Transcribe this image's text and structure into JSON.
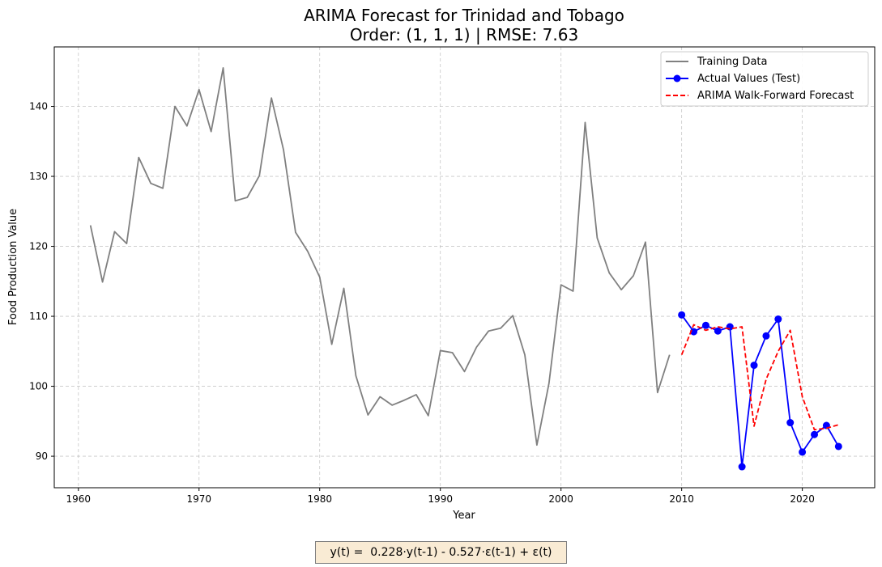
{
  "chart_data": {
    "type": "line",
    "title": "ARIMA Forecast for Trinidad and Tobago",
    "subtitle": "Order: (1, 1, 1) | RMSE: 7.63",
    "xlabel": "Year",
    "ylabel": "Food Production Value",
    "xlim": [
      1958,
      2026
    ],
    "ylim": [
      85.5,
      148.5
    ],
    "xticks": [
      1960,
      1970,
      1980,
      1990,
      2000,
      2010,
      2020
    ],
    "yticks": [
      90,
      100,
      110,
      120,
      130,
      140
    ],
    "grid": true,
    "legend_position": "top-right",
    "series": [
      {
        "name": "Training Data",
        "color": "#808080",
        "style": "solid",
        "marker": "none",
        "x": [
          1961,
          1962,
          1963,
          1964,
          1965,
          1966,
          1967,
          1968,
          1969,
          1970,
          1971,
          1972,
          1973,
          1974,
          1975,
          1976,
          1977,
          1978,
          1979,
          1980,
          1981,
          1982,
          1983,
          1984,
          1985,
          1986,
          1987,
          1988,
          1989,
          1990,
          1991,
          1992,
          1993,
          1994,
          1995,
          1996,
          1997,
          1998,
          1999,
          2000,
          2001,
          2002,
          2003,
          2004,
          2005,
          2006,
          2007,
          2008,
          2009
        ],
        "y": [
          123.0,
          114.9,
          122.1,
          120.4,
          132.7,
          129.0,
          128.3,
          140.0,
          137.2,
          142.4,
          136.4,
          145.5,
          126.5,
          127.0,
          130.1,
          141.2,
          133.8,
          122.0,
          119.3,
          115.6,
          106.0,
          114.0,
          101.5,
          95.9,
          98.5,
          97.3,
          98.0,
          98.8,
          95.8,
          105.1,
          104.8,
          102.1,
          105.6,
          107.9,
          108.3,
          110.1,
          104.5,
          91.6,
          100.4,
          114.5,
          113.6,
          137.7,
          121.2,
          116.2,
          113.8,
          115.8,
          120.6,
          99.1,
          104.5
        ]
      },
      {
        "name": "Actual Values (Test)",
        "color": "#0000ff",
        "style": "solid",
        "marker": "circle",
        "x": [
          2010,
          2011,
          2012,
          2013,
          2014,
          2015,
          2016,
          2017,
          2018,
          2019,
          2020,
          2021,
          2022,
          2023
        ],
        "y": [
          110.2,
          107.8,
          108.7,
          107.9,
          108.5,
          88.5,
          103.0,
          107.2,
          109.6,
          94.8,
          90.6,
          93.1,
          94.4,
          91.4
        ]
      },
      {
        "name": "ARIMA Walk-Forward Forecast",
        "color": "#ff0000",
        "style": "dashed",
        "marker": "none",
        "x": [
          2010,
          2011,
          2012,
          2013,
          2014,
          2015,
          2016,
          2017,
          2018,
          2019,
          2020,
          2021,
          2022,
          2023
        ],
        "y": [
          104.5,
          108.8,
          108.0,
          108.5,
          108.2,
          108.5,
          94.3,
          101.0,
          105.0,
          108.0,
          98.5,
          93.8,
          94.0,
          94.5
        ]
      }
    ]
  },
  "equation": "y(t) =  0.228·y(t-1) - 0.527·ε(t-1) + ε(t)"
}
